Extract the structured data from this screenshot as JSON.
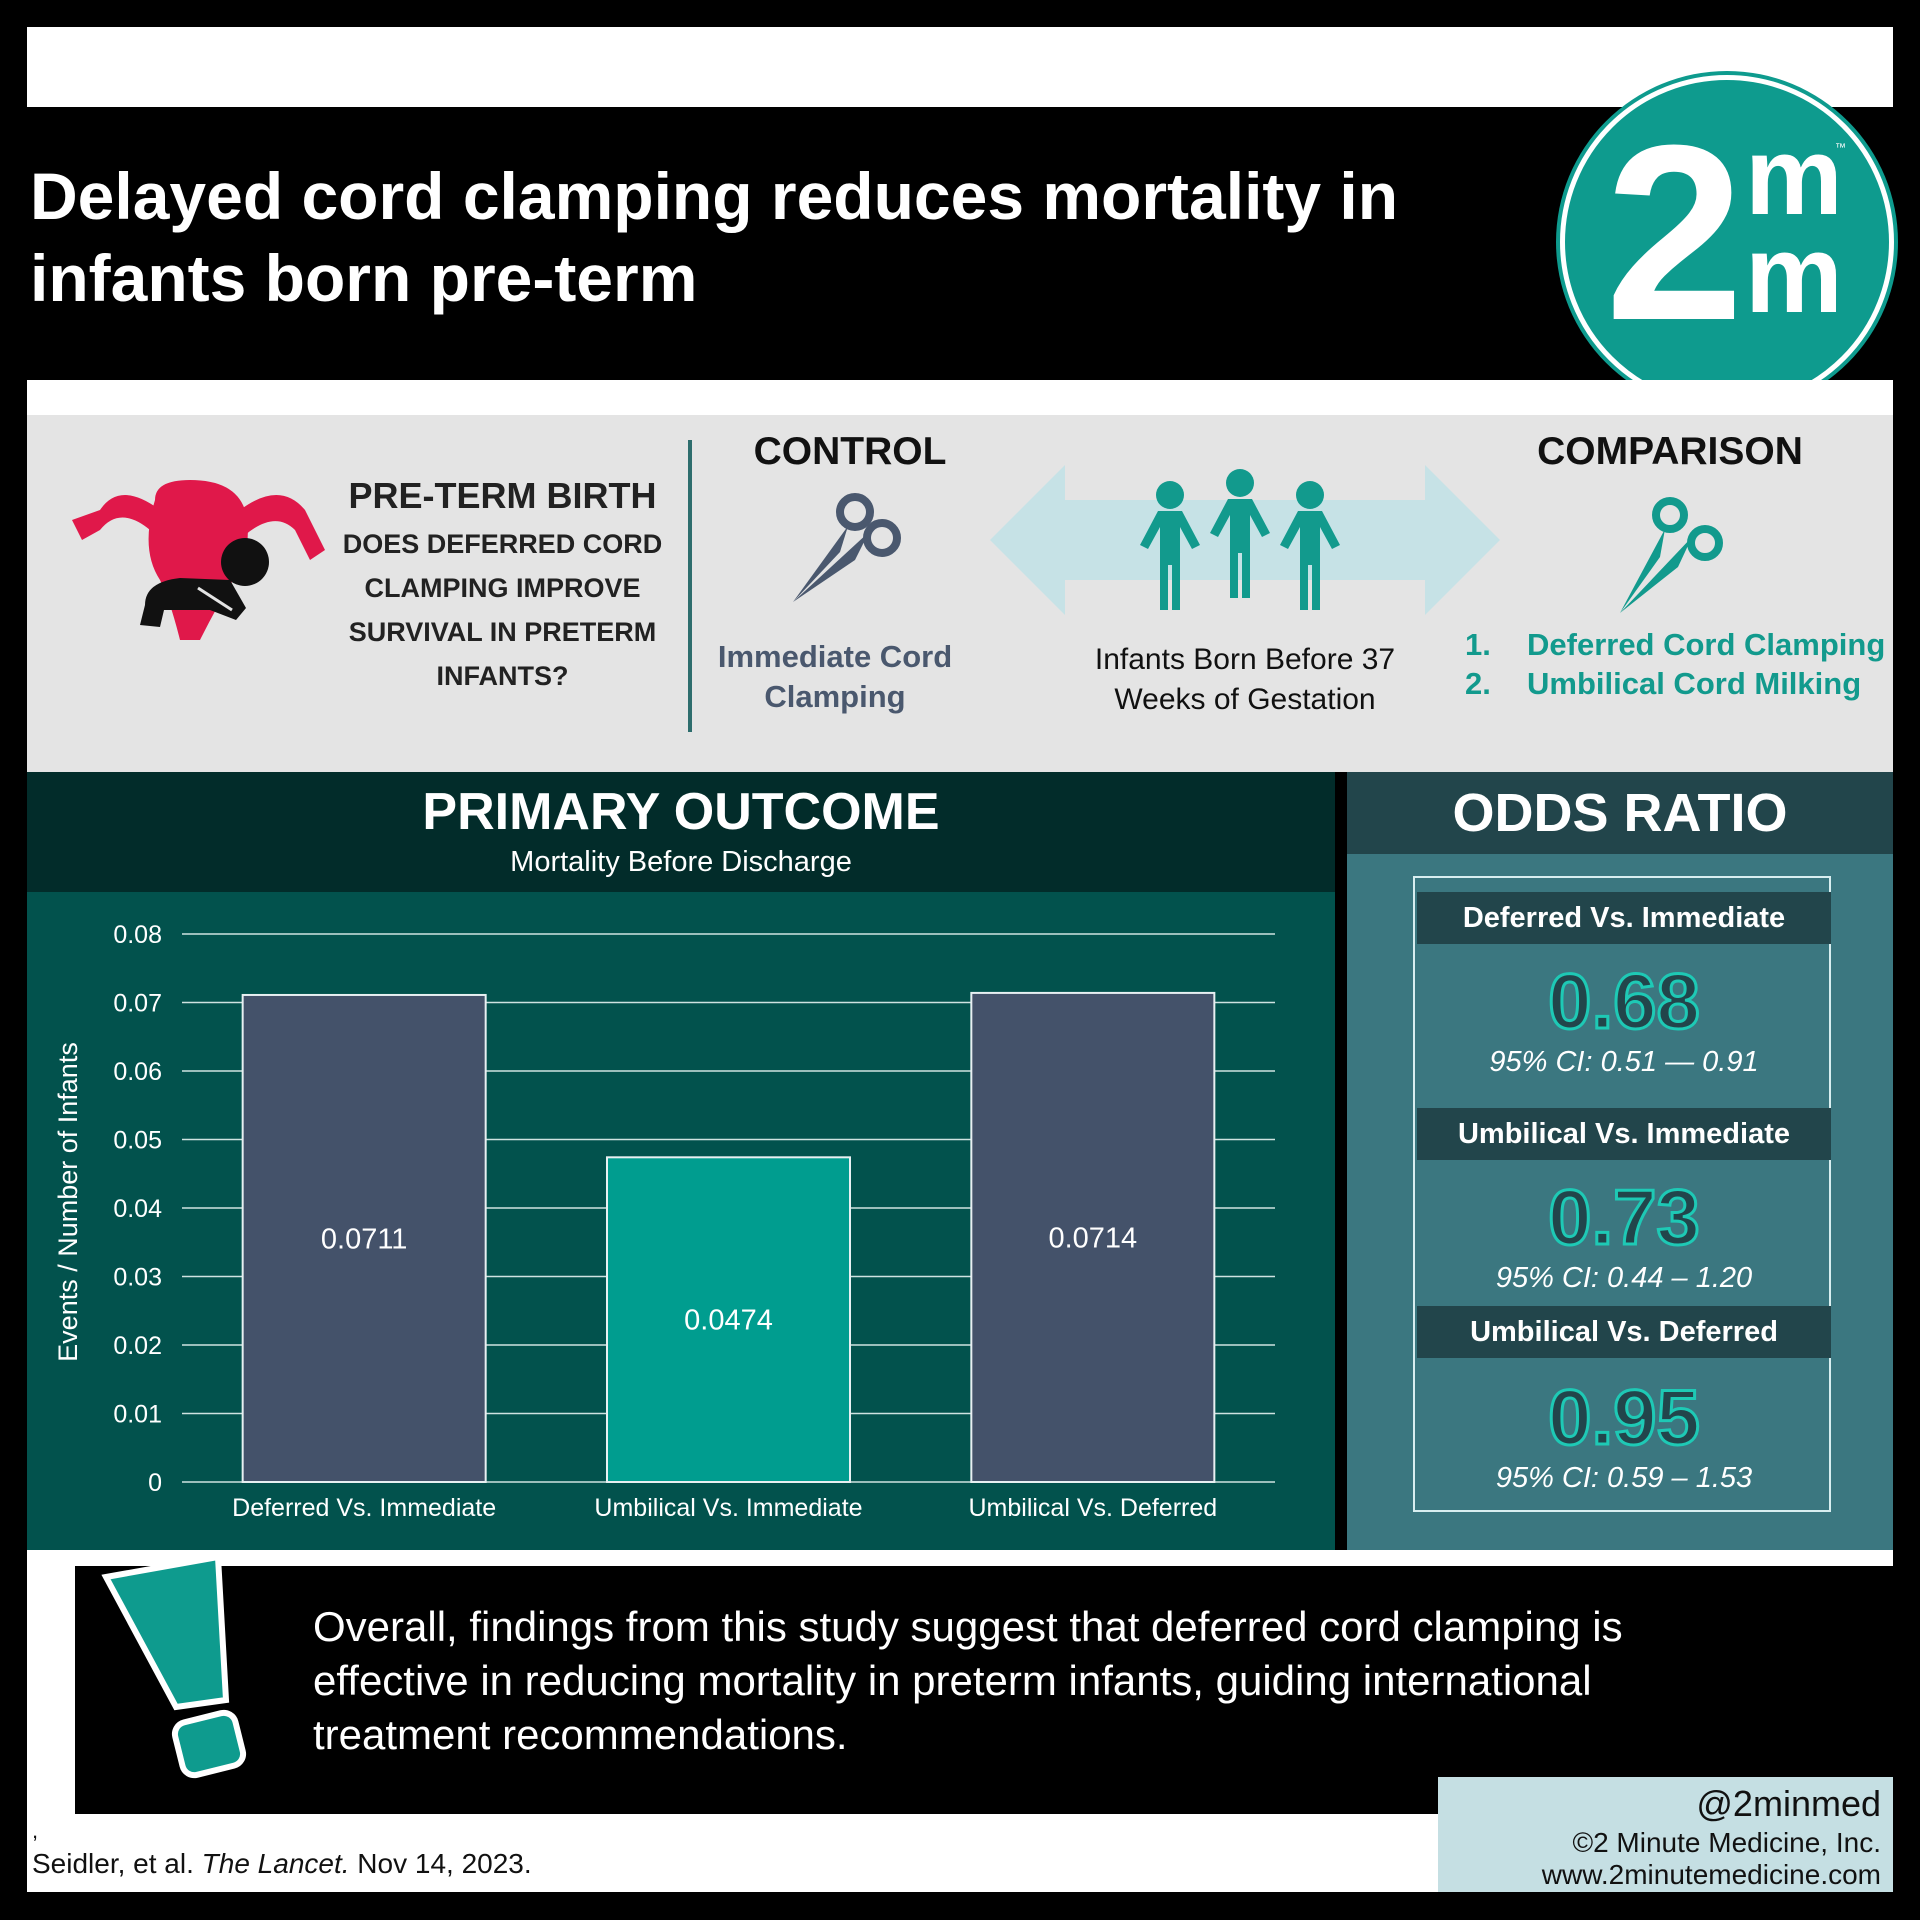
{
  "header": {
    "title": "Delayed cord clamping reduces mortality in infants born pre-term",
    "logo_text": {
      "two": "2",
      "m": "m",
      "tm": "™"
    }
  },
  "pico": {
    "question_title": "PRE-TERM BIRTH",
    "question_text": "DOES DEFERRED CORD CLAMPING IMPROVE SURVIVAL IN PRETERM INFANTS?",
    "control_heading": "CONTROL",
    "control_label": "Immediate Cord Clamping",
    "population_label": "Infants Born Before 37 Weeks of Gestation",
    "comparison_heading": "COMPARISON",
    "comparison_items": [
      {
        "num": "1.",
        "text": "Deferred Cord Clamping"
      },
      {
        "num": "2.",
        "text": "Umbilical Cord Milking"
      }
    ]
  },
  "primary_outcome": {
    "title": "PRIMARY OUTCOME",
    "subtitle": "Mortality Before Discharge"
  },
  "chart_data": {
    "type": "bar",
    "title": "Mortality Before Discharge",
    "xlabel": "",
    "ylabel": "Events / Number of Infants",
    "categories": [
      "Deferred Vs. Immediate",
      "Umbilical Vs. Immediate",
      "Umbilical Vs. Deferred"
    ],
    "values": [
      0.0711,
      0.0474,
      0.0714
    ],
    "value_labels": [
      "0.0711",
      "0.0474",
      "0.0714"
    ],
    "bar_colors": [
      "#44526a",
      "#009d8f",
      "#44526a"
    ],
    "ylim": [
      0,
      0.08
    ],
    "yticks": [
      0,
      0.01,
      0.02,
      0.03,
      0.04,
      0.05,
      0.06,
      0.07,
      0.08
    ],
    "ytick_labels": [
      "0",
      "0.01",
      "0.02",
      "0.03",
      "0.04",
      "0.05",
      "0.06",
      "0.07",
      "0.08"
    ],
    "grid": true
  },
  "odds_ratio": {
    "title": "ODDS RATIO",
    "items": [
      {
        "label": "Deferred Vs. Immediate",
        "value": "0.68",
        "ci": "95% CI: 0.51 — 0.91"
      },
      {
        "label": "Umbilical Vs. Immediate",
        "value": "0.73",
        "ci": "95% CI: 0.44 – 1.20"
      },
      {
        "label": "Umbilical Vs. Deferred",
        "value": "0.95",
        "ci": "95% CI: 0.59 – 1.53"
      }
    ]
  },
  "conclusion": "Overall, findings from this study suggest that deferred cord clamping is effective in reducing mortality in preterm infants, guiding international treatment recommendations.",
  "citation": {
    "comma": ",",
    "authors": "Seidler, et al. ",
    "journal": "The Lancet.",
    "date": " Nov 14, 2023."
  },
  "credits": {
    "handle": "@2minmed",
    "company": "©2 Minute Medicine, Inc.",
    "website": "www.2minutemedicine.com"
  },
  "colors": {
    "teal": "#0e9b8e",
    "dark_teal": "#02524d",
    "slate": "#44526a",
    "or_panel": "#3b7780"
  }
}
